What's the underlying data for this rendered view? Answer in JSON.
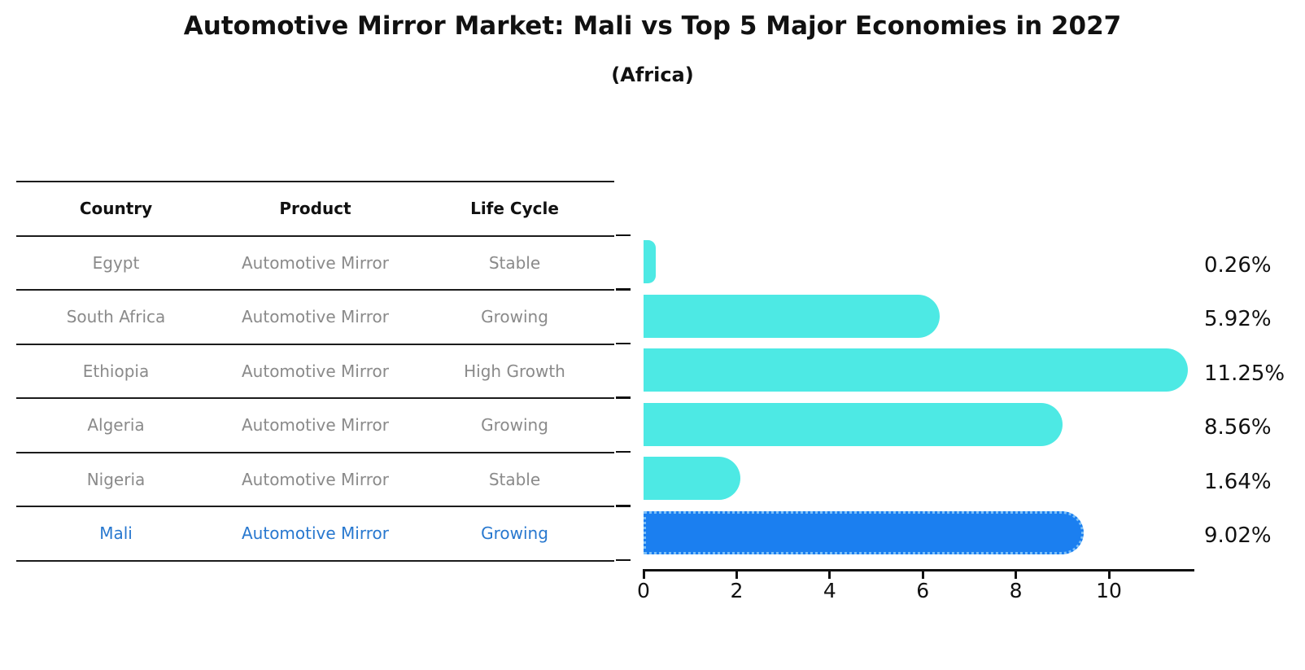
{
  "title": "Automotive Mirror Market: Mali vs Top 5 Major Economies in 2027",
  "subtitle": "(Africa)",
  "colors": {
    "bar_default": "#4de9e4",
    "bar_highlight": "#1b7ff0",
    "bar_highlight_border": "#7ec0f7",
    "table_header_text": "#111111",
    "table_row_text": "#8a8a8a",
    "highlight_row_text": "#2878cf",
    "axis": "#111111"
  },
  "table": {
    "headers": [
      "Country",
      "Product",
      "Life Cycle"
    ],
    "rows": [
      {
        "country": "Egypt",
        "product": "Automotive Mirror",
        "life_cycle": "Stable",
        "highlight": false
      },
      {
        "country": "South Africa",
        "product": "Automotive Mirror",
        "life_cycle": "Growing",
        "highlight": false
      },
      {
        "country": "Ethiopia",
        "product": "Automotive Mirror",
        "life_cycle": "High Growth",
        "highlight": false
      },
      {
        "country": "Algeria",
        "product": "Automotive Mirror",
        "life_cycle": "Growing",
        "highlight": false
      },
      {
        "country": "Nigeria",
        "product": "Automotive Mirror",
        "life_cycle": "Stable",
        "highlight": false
      },
      {
        "country": "Mali",
        "product": "Automotive Mirror",
        "life_cycle": "Growing",
        "highlight": true
      }
    ]
  },
  "chart_data": {
    "type": "bar",
    "orientation": "horizontal",
    "title": "Automotive Mirror Market: Mali vs Top 5 Major Economies in 2027",
    "subtitle": "(Africa)",
    "categories": [
      "Egypt",
      "South Africa",
      "Ethiopia",
      "Algeria",
      "Nigeria",
      "Mali"
    ],
    "values": [
      0.26,
      5.92,
      11.25,
      8.56,
      1.64,
      9.02
    ],
    "value_labels": [
      "0.26%",
      "5.92%",
      "11.25%",
      "8.56%",
      "1.64%",
      "9.02%"
    ],
    "highlight_index": 5,
    "x_ticks": [
      0,
      2,
      4,
      6,
      8,
      10
    ],
    "xlim": [
      0,
      11.8
    ],
    "xlabel": "",
    "ylabel": "",
    "grid": false,
    "legend": "none",
    "bar_style": "rounded-right-cap, highlight bar has dotted border"
  }
}
